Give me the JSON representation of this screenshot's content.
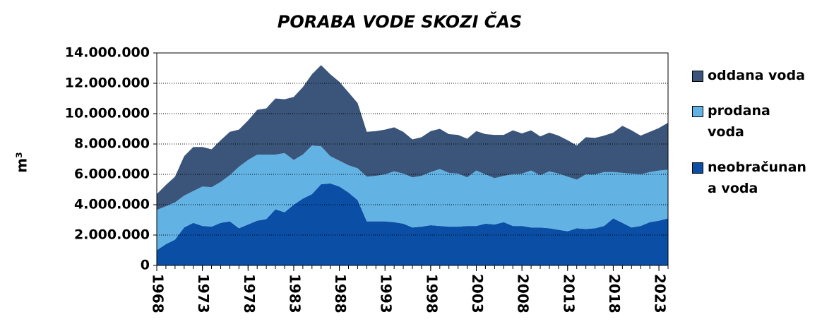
{
  "chart_data": {
    "type": "stacked_area",
    "title": "PORABA VODE SKOZI ČAS",
    "y_label": "m³",
    "x": [
      1968,
      1969,
      1970,
      1971,
      1972,
      1973,
      1974,
      1975,
      1976,
      1977,
      1978,
      1979,
      1980,
      1981,
      1982,
      1983,
      1984,
      1985,
      1986,
      1987,
      1988,
      1989,
      1990,
      1991,
      1992,
      1993,
      1994,
      1995,
      1996,
      1997,
      1998,
      1999,
      2000,
      2001,
      2002,
      2003,
      2004,
      2005,
      2006,
      2007,
      2008,
      2009,
      2010,
      2011,
      2012,
      2013,
      2014,
      2015,
      2016,
      2017,
      2018,
      2019,
      2020,
      2021,
      2022,
      2023,
      2024
    ],
    "xlim": [
      1968,
      2024
    ],
    "xticks": [
      1968,
      1973,
      1978,
      1983,
      1988,
      1993,
      1998,
      2003,
      2008,
      2013,
      2018,
      2023
    ],
    "ylim": [
      0,
      14000000
    ],
    "yticks": [
      0,
      {
        "value": 2000000,
        "label": "2.000.000"
      },
      {
        "value": 4000000,
        "label": "4.000.000"
      },
      {
        "value": 6000000,
        "label": "6.000.000"
      },
      {
        "value": 8000000,
        "label": "8.000.000"
      },
      {
        "value": 10000000,
        "label": "10.000.000"
      },
      {
        "value": 12000000,
        "label": "12.000.000"
      },
      {
        "value": 14000000,
        "label": "14.000.000"
      }
    ],
    "grid": true,
    "legend": "right",
    "series": [
      {
        "name": "neobračunana voda",
        "color": "#0a4ea6",
        "values": [
          1000000,
          1400000,
          1700000,
          2500000,
          2800000,
          2600000,
          2550000,
          2800000,
          2900000,
          2450000,
          2700000,
          2950000,
          3050000,
          3700000,
          3500000,
          4000000,
          4400000,
          4700000,
          5350000,
          5400000,
          5200000,
          4800000,
          4300000,
          2900000,
          2900000,
          2900000,
          2850000,
          2750000,
          2500000,
          2550000,
          2650000,
          2600000,
          2550000,
          2550000,
          2600000,
          2600000,
          2750000,
          2700000,
          2850000,
          2600000,
          2600000,
          2500000,
          2500000,
          2450000,
          2350000,
          2250000,
          2450000,
          2400000,
          2450000,
          2600000,
          3100000,
          2800000,
          2500000,
          2600000,
          2850000,
          2950000,
          3100000
        ]
      },
      {
        "name": "prodana voda",
        "color": "#62b3e4",
        "values": [
          2650000,
          2500000,
          2450000,
          2100000,
          2100000,
          2600000,
          2600000,
          2700000,
          3050000,
          4050000,
          4250000,
          4350000,
          4250000,
          3600000,
          3900000,
          2950000,
          2900000,
          3200000,
          2500000,
          1800000,
          1700000,
          1800000,
          2100000,
          2950000,
          3000000,
          3100000,
          3350000,
          3300000,
          3300000,
          3350000,
          3500000,
          3750000,
          3550000,
          3500000,
          3200000,
          3650000,
          3250000,
          3050000,
          3050000,
          3400000,
          3450000,
          3750000,
          3450000,
          3750000,
          3700000,
          3600000,
          3200000,
          3600000,
          3550000,
          3550000,
          3050000,
          3300000,
          3550000,
          3400000,
          3300000,
          3300000,
          3200000
        ]
      },
      {
        "name": "oddana voda",
        "color": "#3a5579",
        "values": [
          1050000,
          1400000,
          1700000,
          2600000,
          2900000,
          2600000,
          2500000,
          2750000,
          2850000,
          2450000,
          2600000,
          2950000,
          3050000,
          3700000,
          3550000,
          4150000,
          4450000,
          4700000,
          5350000,
          5400000,
          5200000,
          4800000,
          4300000,
          2950000,
          2950000,
          2950000,
          2900000,
          2750000,
          2500000,
          2550000,
          2700000,
          2650000,
          2550000,
          2550000,
          2550000,
          2600000,
          2650000,
          2850000,
          2700000,
          2900000,
          2650000,
          2650000,
          2550000,
          2550000,
          2500000,
          2400000,
          2250000,
          2450000,
          2400000,
          2400000,
          2600000,
          3100000,
          2850000,
          2550000,
          2650000,
          2800000,
          3100000
        ]
      }
    ]
  }
}
